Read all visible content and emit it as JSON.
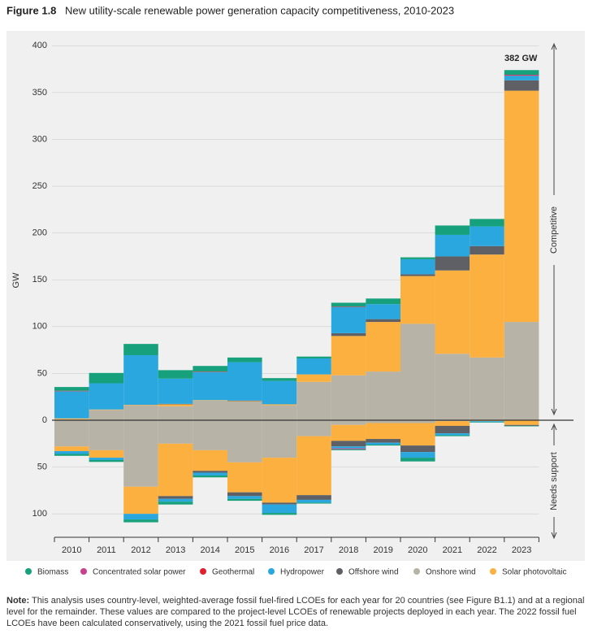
{
  "figure_label": "Figure 1.8",
  "chart_data": {
    "type": "stacked_bar",
    "title": "New utility-scale renewable power generation capacity competitiveness, 2010-2023",
    "y_label": "GW",
    "annotation": "382 GW",
    "upper_label": "Competitive",
    "lower_label": "Needs support",
    "categories": [
      "2010",
      "2011",
      "2012",
      "2013",
      "2014",
      "2015",
      "2016",
      "2017",
      "2018",
      "2019",
      "2020",
      "2021",
      "2022",
      "2023"
    ],
    "ylim": [
      -125,
      415
    ],
    "yticks": [
      {
        "value": -100,
        "label": "100"
      },
      {
        "value": -50,
        "label": "50"
      },
      0,
      50,
      100,
      150,
      200,
      250,
      300,
      350,
      400
    ],
    "series": [
      {
        "name": "Onshore wind",
        "color": "#b7b3a6",
        "values": [
          1,
          11,
          16,
          15,
          21,
          20,
          16,
          41,
          48,
          52,
          103,
          71,
          67,
          105
        ],
        "values_needs_support": [
          -28,
          -32,
          -71,
          -25,
          -32,
          -45,
          -40,
          -17,
          -5,
          -3,
          -3,
          -1,
          -0.5,
          0
        ]
      },
      {
        "name": "Solar photovoltaic",
        "color": "#fbb040",
        "values": [
          1,
          0.5,
          0.5,
          2,
          0.5,
          0.5,
          1,
          8,
          42,
          53,
          51,
          89,
          110,
          247
        ],
        "values_needs_support": [
          -5,
          -8,
          -29,
          -56,
          -22,
          -32,
          -48,
          -63,
          -17,
          -17,
          -24,
          -5,
          -0.5,
          -5
        ]
      },
      {
        "name": "Offshore wind",
        "color": "#5e6066",
        "values": [
          0,
          0,
          0,
          0.5,
          0,
          0.5,
          0,
          0,
          3,
          3,
          2,
          15,
          9,
          11
        ],
        "values_needs_support": [
          0,
          0,
          0,
          -3,
          -2,
          -4,
          -2,
          -5,
          -6,
          -4,
          -7,
          -8,
          0,
          -1
        ]
      },
      {
        "name": "Hydropower",
        "color": "#2aa7df",
        "values": [
          29,
          28,
          53,
          27,
          30,
          41,
          25,
          17,
          28,
          16,
          16,
          23,
          21,
          5
        ],
        "values_needs_support": [
          -3,
          -2.5,
          -6,
          -3,
          -3,
          -3,
          -9,
          -3,
          -2,
          -2,
          -6,
          -2,
          -1,
          0
        ]
      },
      {
        "name": "Geothermal",
        "color": "#e0202e",
        "values": [
          0.5,
          0,
          0,
          0,
          0.5,
          0,
          0,
          0,
          0.5,
          0,
          0,
          0,
          0,
          0.5
        ],
        "values_needs_support": [
          0,
          0,
          0,
          0,
          0,
          0,
          0,
          0,
          0,
          0,
          0,
          0,
          0,
          0
        ]
      },
      {
        "name": "Concentrated solar power",
        "color": "#c9418d",
        "values": [
          0,
          0,
          0,
          0,
          0,
          0,
          0,
          0,
          0,
          0,
          0,
          0,
          0,
          0.5
        ],
        "values_needs_support": [
          0,
          0,
          0,
          0,
          0,
          0,
          0,
          0,
          -1,
          0,
          0,
          0,
          0,
          0
        ]
      },
      {
        "name": "Biomass",
        "color": "#16a07c",
        "values": [
          4,
          11,
          12,
          9,
          6,
          5,
          3,
          2,
          4,
          6,
          2,
          10,
          8,
          5
        ],
        "values_needs_support": [
          -2,
          -2,
          -3,
          -3,
          -2,
          -2,
          -2,
          -1,
          -1,
          -1,
          -4,
          -1,
          -0.5,
          -0.5
        ]
      }
    ]
  },
  "note": {
    "label": "Note:",
    "text": "This analysis uses country-level, weighted-average fossil fuel-fired LCOEs for each year for 20 countries (see Figure B1.1) and at a regional level for the remainder. These values are compared to the project-level LCOEs of renewable projects deployed in each year. The 2022 fossil fuel LCOEs have been calculated conservatively, using the 2021 fossil fuel price data."
  }
}
